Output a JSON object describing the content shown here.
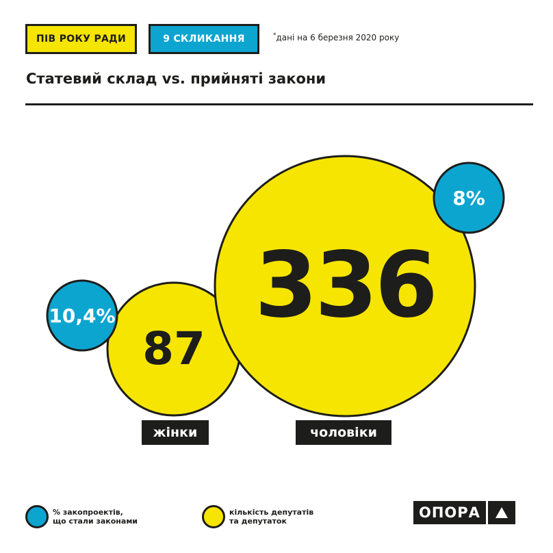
{
  "header": {
    "tag_primary": "ПІВ РОКУ РАДИ",
    "tag_secondary": "9 СКЛИКАННЯ",
    "note_star": "*",
    "note": "дані на 6 березня 2020 року"
  },
  "title": "Статевий склад vs. прийняті закони",
  "colors": {
    "yellow": "#f6e500",
    "blue": "#0ca5d0",
    "dark": "#1d1d1b"
  },
  "chart_data": {
    "type": "bubble",
    "title": "Статевий склад vs. прийняті закони",
    "categories": [
      "жінки",
      "чоловіки"
    ],
    "series": [
      {
        "name": "кількість депутатів та депутаток",
        "values": [
          87,
          336
        ],
        "labels": [
          "87",
          "336"
        ]
      },
      {
        "name": "% закопроектів, що стали законами",
        "values": [
          10.4,
          8
        ],
        "labels": [
          "10,4%",
          "8%"
        ]
      }
    ]
  },
  "legend": {
    "blue_label": "% закопроектів,\nщо стали законами",
    "yellow_label": "кількість депутатів\nта депутаток"
  },
  "logo": {
    "text": "ОПОРА",
    "icon": "triangle-up-icon"
  }
}
